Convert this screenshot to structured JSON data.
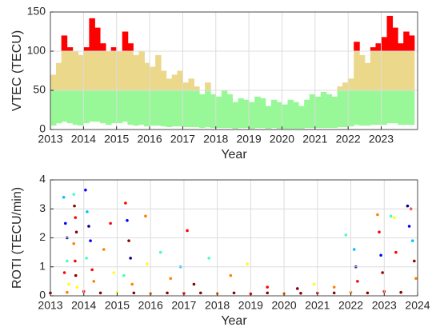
{
  "chart_data": [
    {
      "type": "range-bar",
      "ylabel": "VTEC (TECU)",
      "xlabel": "Year",
      "xlim": [
        2013,
        2024.1
      ],
      "xticks": [
        2013,
        2014,
        2015,
        2016,
        2017,
        2018,
        2019,
        2020,
        2021,
        2022,
        2023
      ],
      "ylim": [
        0,
        150
      ],
      "yticks": [
        0,
        50,
        100,
        150
      ],
      "grid": true,
      "thresholds": [
        50,
        100
      ],
      "colors": [
        "#98f898",
        "#ecd88a",
        "#ff0000"
      ],
      "x": [
        2013.0,
        2013.17,
        2013.33,
        2013.5,
        2013.67,
        2013.83,
        2014.0,
        2014.17,
        2014.33,
        2014.5,
        2014.67,
        2014.83,
        2015.0,
        2015.17,
        2015.33,
        2015.5,
        2015.67,
        2015.83,
        2016.0,
        2016.17,
        2016.33,
        2016.5,
        2016.67,
        2016.83,
        2017.0,
        2017.17,
        2017.33,
        2017.5,
        2017.67,
        2017.83,
        2018.0,
        2018.17,
        2018.33,
        2018.5,
        2018.67,
        2018.83,
        2019.0,
        2019.17,
        2019.33,
        2019.5,
        2019.67,
        2019.83,
        2020.0,
        2020.17,
        2020.33,
        2020.5,
        2020.67,
        2020.83,
        2021.0,
        2021.17,
        2021.33,
        2021.5,
        2021.67,
        2021.83,
        2022.0,
        2022.17,
        2022.33,
        2022.5,
        2022.67,
        2022.83,
        2023.0,
        2023.17,
        2023.33,
        2023.5,
        2023.67,
        2023.83
      ],
      "max": [
        70,
        85,
        120,
        105,
        100,
        95,
        105,
        142,
        130,
        110,
        100,
        105,
        100,
        125,
        110,
        95,
        100,
        85,
        80,
        95,
        75,
        65,
        70,
        75,
        60,
        65,
        55,
        45,
        60,
        45,
        42,
        50,
        45,
        35,
        40,
        38,
        35,
        42,
        40,
        30,
        38,
        35,
        32,
        38,
        35,
        30,
        38,
        45,
        42,
        48,
        45,
        42,
        55,
        60,
        65,
        112,
        95,
        85,
        105,
        110,
        118,
        145,
        130,
        110,
        125,
        120
      ],
      "min": [
        5,
        8,
        10,
        8,
        6,
        5,
        8,
        10,
        10,
        8,
        6,
        8,
        8,
        10,
        6,
        5,
        6,
        4,
        5,
        5,
        4,
        3,
        4,
        4,
        3,
        3,
        3,
        2,
        3,
        2,
        2,
        2,
        2,
        1,
        2,
        2,
        1,
        2,
        2,
        1,
        2,
        1,
        1,
        1,
        1,
        1,
        2,
        2,
        2,
        2,
        2,
        2,
        3,
        3,
        4,
        6,
        5,
        5,
        6,
        6,
        6,
        8,
        8,
        6,
        6,
        6
      ]
    },
    {
      "type": "scatter",
      "ylabel": "ROTI (TECU/min)",
      "xlabel": "Year",
      "xlim": [
        2013,
        2024
      ],
      "xticks": [
        2013,
        2014,
        2015,
        2016,
        2017,
        2018,
        2019,
        2020,
        2021,
        2022,
        2023,
        2024
      ],
      "ylim": [
        0,
        4
      ],
      "yticks": [
        0,
        1,
        2,
        3,
        4
      ],
      "grid": true,
      "x": [
        2013.4,
        2013.45,
        2013.5,
        2013.5,
        2013.42,
        2013.55,
        2013.7,
        2013.72,
        2013.75,
        2013.78,
        2013.7,
        2013.74,
        2013.76,
        2013.8,
        2014.05,
        2014.1,
        2014.15,
        2014.2,
        2014.08,
        2014.25,
        2014.3,
        2014.6,
        2014.8,
        2014.9,
        2015.25,
        2015.3,
        2015.35,
        2015.4,
        2015.2,
        2015.45,
        2015.85,
        2015.9,
        2016.3,
        2016.6,
        2016.9,
        2017.1,
        2017.3,
        2017.75,
        2018.4,
        2018.9,
        2019.5,
        2020.4,
        2020.9,
        2021.5,
        2021.85,
        2022.1,
        2022.15,
        2022.2,
        2022.8,
        2022.85,
        2022.9,
        2022.95,
        2023.2,
        2023.3,
        2023.35,
        2023.7,
        2023.75,
        2023.8,
        2023.85,
        2023.9,
        2023.95,
        2013.0,
        2013.5,
        2014.0,
        2014.5,
        2015.0,
        2015.5,
        2016.0,
        2016.5,
        2017.0,
        2017.5,
        2018.0,
        2018.5,
        2019.0,
        2019.5,
        2020.0,
        2020.5,
        2021.0,
        2021.5,
        2022.0,
        2022.5,
        2023.0,
        2023.5
      ],
      "y": [
        3.4,
        2.5,
        2.0,
        1.2,
        0.8,
        0.4,
        3.5,
        3.1,
        2.7,
        2.2,
        1.8,
        1.2,
        0.7,
        0.3,
        3.65,
        2.9,
        2.4,
        1.9,
        1.3,
        0.9,
        0.5,
        1.6,
        2.5,
        0.8,
        3.2,
        2.6,
        1.9,
        1.3,
        0.7,
        0.4,
        2.75,
        1.1,
        1.5,
        0.6,
        1.0,
        2.25,
        0.4,
        1.3,
        0.7,
        1.1,
        0.3,
        0.25,
        0.4,
        0.3,
        2.1,
        1.6,
        1.0,
        0.5,
        2.8,
        2.2,
        1.4,
        0.8,
        2.75,
        2.7,
        1.5,
        3.1,
        2.4,
        3.0,
        1.9,
        1.2,
        0.6,
        0.1,
        0.12,
        0.15,
        0.1,
        0.12,
        0.1,
        0.08,
        0.1,
        0.09,
        0.1,
        0.08,
        0.1,
        0.07,
        0.1,
        0.08,
        0.09,
        0.1,
        0.1,
        0.12,
        0.1,
        0.15,
        0.12
      ],
      "colors": [
        "#00bfff",
        "#0000ff",
        "#00008b",
        "#40ffbf",
        "#ff0000",
        "#ffff00",
        "#40ffbf",
        "#8b0000",
        "#ff0000",
        "#8b0000",
        "#ff8000",
        "#ff0000",
        "#8b0000",
        "#ffff00",
        "#0000ff",
        "#00bfff",
        "#00008b",
        "#0000ff",
        "#40ffbf",
        "#ff0000",
        "#ff8000",
        "#ff8000",
        "#ff0000",
        "#ffff00",
        "#ff0000",
        "#0000ff",
        "#8b0000",
        "#00008b",
        "#40ffbf",
        "#ff8000",
        "#ff8000",
        "#ffff00",
        "#40ffbf",
        "#ff8000",
        "#00bfff",
        "#ff0000",
        "#8b0000",
        "#40ffbf",
        "#ff8000",
        "#ffff00",
        "#ff0000",
        "#8b0000",
        "#ffff00",
        "#ff8000",
        "#40ffbf",
        "#00bfff",
        "#00008b",
        "#ff0000",
        "#ff8000",
        "#ff0000",
        "#0000ff",
        "#8b0000",
        "#40ffbf",
        "#ffff00",
        "#ff0000",
        "#00008b",
        "#0000ff",
        "#ff0000",
        "#00bfff",
        "#8b0000",
        "#ff8000",
        "#8b0000",
        "#ff8000",
        "#ff0000",
        "#8b0000",
        "#ffff00",
        "#8b0000",
        "#ff8000",
        "#8b0000",
        "#ff0000",
        "#8b0000",
        "#ff8000",
        "#8b0000",
        "#ff0000",
        "#8b0000",
        "#ff8000",
        "#8b0000",
        "#ff0000",
        "#8b0000",
        "#ff8000",
        "#8b0000",
        "#ff0000",
        "#8b0000"
      ]
    }
  ]
}
